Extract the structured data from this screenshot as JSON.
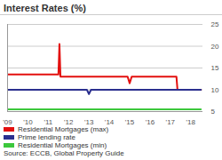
{
  "chart_data": {
    "type": "line",
    "title": "Interest Rates (%)",
    "source": "Source: ECCB, Global Property Guide",
    "x": [
      2009,
      2009.5,
      2010,
      2010.5,
      2011,
      2011.5,
      2011.55,
      2011.6,
      2011.65,
      2012,
      2012.5,
      2012.9,
      2013,
      2013.1,
      2013.5,
      2014,
      2014.5,
      2014.9,
      2015,
      2015.1,
      2015.5,
      2016,
      2016.5,
      2017,
      2017.3,
      2017.35,
      2017.5,
      2018,
      2018.5
    ],
    "series": [
      {
        "name": "Residential Mortgages (max)",
        "color": "#e3100f",
        "values": [
          13.5,
          13.5,
          13.5,
          13.5,
          13.5,
          13.5,
          20.5,
          13,
          13,
          13,
          13,
          13,
          13,
          13,
          13,
          13,
          13,
          13,
          11.5,
          13,
          13,
          13,
          13,
          13,
          13,
          10,
          10,
          10,
          10
        ]
      },
      {
        "name": "Prime lending rate",
        "color": "#2b2f8f",
        "values": [
          10,
          10,
          10,
          10,
          10,
          10,
          10,
          10,
          10,
          10,
          10,
          10,
          9,
          10,
          10,
          10,
          10,
          10,
          10,
          10,
          10,
          10,
          10,
          10,
          10,
          10,
          10,
          10,
          10
        ]
      },
      {
        "name": "Residential Mortgages (min)",
        "color": "#3cc83c",
        "values": [
          5.5,
          5.5,
          5.5,
          5.5,
          5.5,
          5.5,
          5.5,
          5.5,
          5.5,
          5.5,
          5.5,
          5.5,
          5.5,
          5.5,
          5.5,
          5.5,
          5.5,
          5.5,
          5.5,
          5.5,
          5.5,
          5.5,
          5.5,
          5.5,
          5.5,
          5.5,
          5.5,
          5.5,
          5.5
        ]
      }
    ],
    "xlim": [
      2009,
      2018.6
    ],
    "xticks": [
      {
        "value": 2009,
        "label": "'09"
      },
      {
        "value": 2010,
        "label": "'10"
      },
      {
        "value": 2011,
        "label": "'11"
      },
      {
        "value": 2012,
        "label": "'12"
      },
      {
        "value": 2013,
        "label": "'13"
      },
      {
        "value": 2014,
        "label": "'14"
      },
      {
        "value": 2015,
        "label": "'15"
      },
      {
        "value": 2016,
        "label": "'16"
      },
      {
        "value": 2017,
        "label": "'17"
      },
      {
        "value": 2018,
        "label": "'18"
      }
    ],
    "ylim": [
      5,
      25
    ],
    "yticks": [
      5,
      10,
      15,
      20,
      25
    ],
    "grid": true
  }
}
